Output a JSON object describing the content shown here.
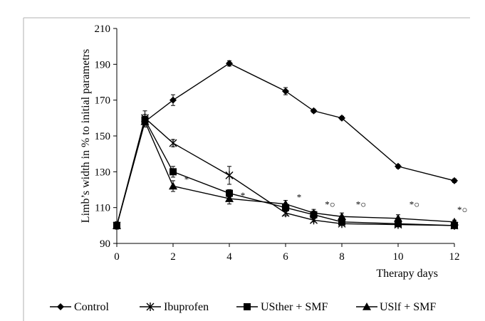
{
  "chart_data": {
    "type": "line",
    "title": "",
    "xlabel": "Therapy days",
    "ylabel": "Limb’s width in % to initial parametrs",
    "xlim": [
      0,
      12
    ],
    "ylim": [
      90,
      210
    ],
    "xticks": [
      "0",
      "2",
      "4",
      "6",
      "8",
      "10",
      "12"
    ],
    "yticks": [
      "90",
      "110",
      "130",
      "150",
      "170",
      "190",
      "210"
    ],
    "grid": false,
    "legend": "bottom",
    "series": [
      {
        "name": "Control",
        "marker": "diamond",
        "x": [
          0,
          1,
          2,
          4,
          6,
          7,
          8,
          10,
          12
        ],
        "y": [
          100,
          158,
          170,
          190.5,
          175,
          164,
          160,
          133,
          125
        ],
        "err": [
          2,
          3,
          3,
          1.5,
          2,
          1,
          1,
          1,
          1
        ]
      },
      {
        "name": "Ibuprofen",
        "marker": "asterisk",
        "x": [
          0,
          1,
          2,
          4,
          6,
          7,
          8,
          10,
          12
        ],
        "y": [
          100,
          160,
          146,
          128,
          107,
          103,
          101,
          100.5,
          100
        ],
        "err": [
          2,
          4,
          2,
          5,
          1.5,
          1,
          1,
          1,
          1
        ]
      },
      {
        "name": "USther + SMF",
        "marker": "square",
        "x": [
          0,
          1,
          2,
          4,
          6,
          7,
          8,
          10,
          12
        ],
        "y": [
          100,
          159,
          130,
          118,
          110,
          106,
          102,
          101,
          100
        ],
        "err": [
          2,
          3,
          3,
          2,
          2,
          2,
          1.5,
          1,
          1
        ]
      },
      {
        "name": "USlf + SMF",
        "marker": "triangle",
        "x": [
          0,
          1,
          2,
          4,
          6,
          7,
          8,
          10,
          12
        ],
        "y": [
          100,
          158,
          122,
          115,
          112,
          107,
          105,
          104,
          102
        ],
        "err": [
          2,
          3,
          3,
          3,
          2,
          2,
          2,
          2,
          1
        ]
      }
    ],
    "annotations": [
      {
        "text": "*",
        "x": 2.4,
        "y": 124
      },
      {
        "text": "*",
        "x": 4.4,
        "y": 115
      },
      {
        "text": "*",
        "x": 6.4,
        "y": 114
      },
      {
        "text": "*○",
        "x": 7.4,
        "y": 110
      },
      {
        "text": "*○",
        "x": 8.5,
        "y": 110
      },
      {
        "text": "*○",
        "x": 10.4,
        "y": 110
      },
      {
        "text": "*○",
        "x": 12.1,
        "y": 107
      }
    ]
  }
}
